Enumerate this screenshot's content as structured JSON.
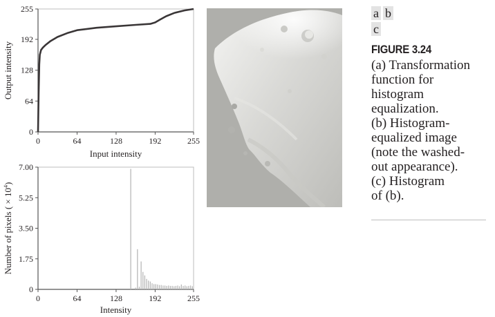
{
  "figure": {
    "label": "FIGURE 3.24",
    "panel_keys": [
      "a",
      "b",
      "c"
    ],
    "caption_lines": [
      "(a) Transformation",
      "function for",
      "histogram",
      "equalization.",
      "(b) Histogram-",
      "equalized image",
      "(note the washed-",
      "out appearance).",
      "(c) Histogram",
      "of (b)."
    ]
  },
  "colors": {
    "curve": "#3a3637",
    "axis": "#555555",
    "bars": "#b8b8b8",
    "panel_key_bg": "#e3e3e3"
  },
  "image": {
    "icon": "moon-grayscale-image"
  },
  "chart_data": [
    {
      "type": "line",
      "xlabel": "Input intensity",
      "ylabel": "Output intensity",
      "xlim": [
        0,
        255
      ],
      "ylim": [
        0,
        255
      ],
      "xticks": [
        0,
        64,
        128,
        192,
        255
      ],
      "yticks": [
        0,
        64,
        128,
        192,
        255
      ],
      "series": [
        {
          "x": [
            0,
            1,
            2,
            3,
            5,
            8,
            12,
            20,
            32,
            48,
            64,
            96,
            128,
            160,
            184,
            192,
            200,
            210,
            224,
            240,
            255
          ],
          "y": [
            0,
            80,
            140,
            160,
            170,
            175,
            180,
            188,
            197,
            205,
            211,
            216,
            219,
            222,
            224,
            227,
            233,
            240,
            247,
            252,
            255
          ]
        }
      ]
    },
    {
      "type": "bar",
      "xlabel": "Intensity",
      "ylabel": "Number of pixels ( × 10",
      "ylabel_exponent": "4",
      "ylabel_close": ")",
      "xlim": [
        0,
        255
      ],
      "ylim": [
        0,
        7
      ],
      "xticks": [
        0,
        64,
        128,
        192,
        255
      ],
      "yticks": [
        0,
        1.75,
        3.5,
        5.25,
        7
      ],
      "ytick_labels": [
        "0",
        "1.75",
        "3.50",
        "5.25",
        "7.00"
      ],
      "x": [
        152,
        160,
        163,
        166,
        169,
        172,
        175,
        178,
        181,
        184,
        187,
        190,
        193,
        196,
        199,
        202,
        205,
        208,
        211,
        214,
        217,
        220,
        223,
        226,
        229,
        232,
        235,
        238,
        241,
        244,
        247,
        250,
        253
      ],
      "values": [
        6.9,
        0.1,
        2.3,
        0.15,
        1.6,
        1.0,
        0.8,
        0.6,
        0.5,
        0.45,
        0.35,
        0.3,
        0.3,
        0.28,
        0.25,
        0.25,
        0.22,
        0.22,
        0.2,
        0.22,
        0.2,
        0.2,
        0.18,
        0.2,
        0.22,
        0.18,
        0.28,
        0.2,
        0.22,
        0.18,
        0.2,
        0.22,
        0.18
      ]
    }
  ]
}
